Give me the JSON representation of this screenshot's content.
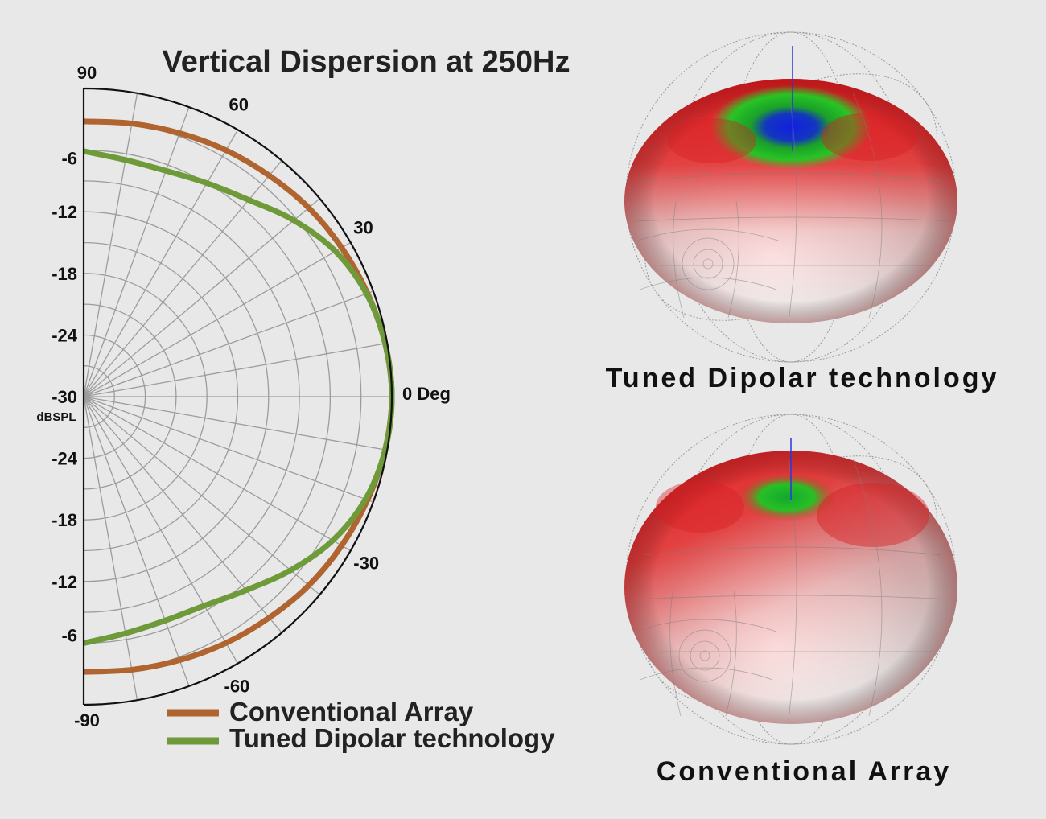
{
  "chart_data": [
    {
      "type": "polar-line",
      "title": "Vertical Dispersion at 250Hz",
      "angular_axis": {
        "range": [
          -90,
          90
        ],
        "tick_labels": [
          {
            "value": 90,
            "label": "90"
          },
          {
            "value": 60,
            "label": "60"
          },
          {
            "value": 30,
            "label": "30"
          },
          {
            "value": 0,
            "label": "0 Deg"
          },
          {
            "value": -30,
            "label": "-30"
          },
          {
            "value": -60,
            "label": "-60"
          },
          {
            "value": -90,
            "label": "-90"
          }
        ]
      },
      "radial_axis": {
        "range": [
          -30,
          0
        ],
        "unit": "dBSPL",
        "tick_labels_upper": [
          {
            "value": -6,
            "label": "-6"
          },
          {
            "value": -12,
            "label": "-12"
          },
          {
            "value": -18,
            "label": "-18"
          },
          {
            "value": -24,
            "label": "-24"
          }
        ],
        "center_label": "-30",
        "tick_labels_lower": [
          {
            "value": -24,
            "label": "-24"
          },
          {
            "value": -18,
            "label": "-18"
          },
          {
            "value": -12,
            "label": "-12"
          },
          {
            "value": -6,
            "label": "-6"
          }
        ]
      },
      "grid": true,
      "legend_position": "bottom",
      "series": [
        {
          "name": "Conventional Array",
          "color": "#b0642f",
          "angles": [
            -90,
            -80,
            -70,
            -60,
            -50,
            -40,
            -30,
            -20,
            -10,
            0,
            10,
            20,
            30,
            40,
            50,
            60,
            70,
            80,
            90
          ],
          "values": [
            -3.2,
            -3.0,
            -2.7,
            -2.3,
            -1.9,
            -1.4,
            -1.0,
            -0.6,
            -0.2,
            0,
            -0.2,
            -0.6,
            -1.0,
            -1.4,
            -1.9,
            -2.3,
            -2.7,
            -3.0,
            -3.2
          ]
        },
        {
          "name": "Tuned Dipolar technology",
          "color": "#6e9a3a",
          "angles": [
            -90,
            -80,
            -70,
            -60,
            -50,
            -40,
            -30,
            -20,
            -10,
            0,
            10,
            20,
            30,
            40,
            50,
            60,
            70,
            80,
            90
          ],
          "values": [
            -6.0,
            -6.6,
            -6.8,
            -6.5,
            -5.4,
            -3.7,
            -2.0,
            -0.8,
            -0.2,
            0,
            -0.2,
            -0.7,
            -1.7,
            -3.3,
            -5.0,
            -6.0,
            -6.6,
            -6.6,
            -6.1
          ]
        }
      ]
    }
  ],
  "balloons": [
    {
      "caption": "Tuned Dipolar technology",
      "rim_color": "#e8262a",
      "top_color": "#22c022",
      "core_color": "#1a22d8"
    },
    {
      "caption": "Conventional Array",
      "rim_color": "#e8262a",
      "top_color": "#22c022",
      "core_color": "#1a22d8"
    }
  ]
}
